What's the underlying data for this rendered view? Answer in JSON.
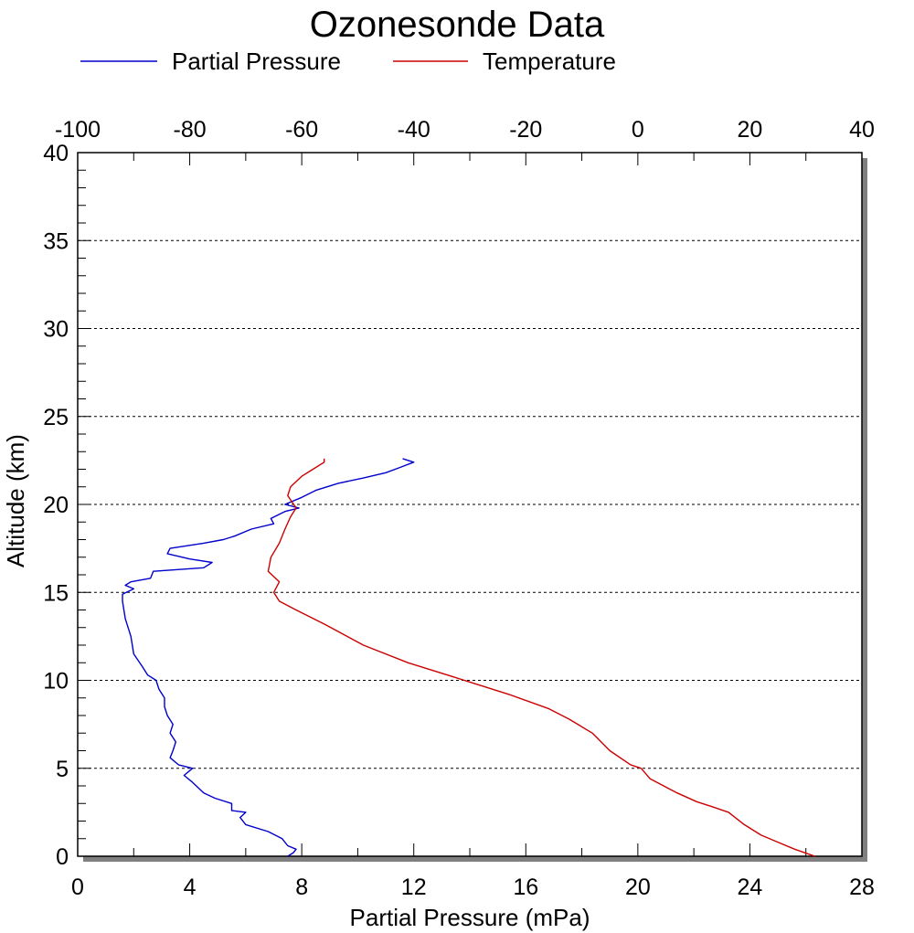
{
  "chart_data": {
    "type": "line",
    "title": "Ozonesonde Data",
    "xlabel": "Partial Pressure (mPa)",
    "ylabel": "Altitude (km)",
    "x_bottom_ticks": [
      "0",
      "4",
      "8",
      "12",
      "16",
      "20",
      "24",
      "28"
    ],
    "x_top_ticks": [
      "-100",
      "-80",
      "-60",
      "-40",
      "-20",
      "0",
      "20",
      "40"
    ],
    "y_ticks": [
      "0",
      "5",
      "10",
      "15",
      "20",
      "25",
      "30",
      "35",
      "40"
    ],
    "xlim_bottom": [
      0,
      28
    ],
    "xlim_top": [
      -100,
      40
    ],
    "ylim": [
      0,
      40
    ],
    "grid": "horizontal dashed",
    "legend_position": "top",
    "series": [
      {
        "name": "Partial Pressure",
        "axis": "bottom",
        "color": "#0000cc",
        "points": [
          [
            7.5,
            0.0
          ],
          [
            7.7,
            0.2
          ],
          [
            7.8,
            0.4
          ],
          [
            7.5,
            0.6
          ],
          [
            7.3,
            1.0
          ],
          [
            6.8,
            1.4
          ],
          [
            6.0,
            1.8
          ],
          [
            5.8,
            2.2
          ],
          [
            6.0,
            2.5
          ],
          [
            5.5,
            2.6
          ],
          [
            5.5,
            3.0
          ],
          [
            4.9,
            3.3
          ],
          [
            4.5,
            3.6
          ],
          [
            4.1,
            4.2
          ],
          [
            3.8,
            4.6
          ],
          [
            4.1,
            5.0
          ],
          [
            3.6,
            5.2
          ],
          [
            3.3,
            5.6
          ],
          [
            3.4,
            6.0
          ],
          [
            3.5,
            6.5
          ],
          [
            3.3,
            7.0
          ],
          [
            3.4,
            7.5
          ],
          [
            3.2,
            8.0
          ],
          [
            3.1,
            8.5
          ],
          [
            3.1,
            9.0
          ],
          [
            2.9,
            9.5
          ],
          [
            2.8,
            10.0
          ],
          [
            2.5,
            10.3
          ],
          [
            2.3,
            10.8
          ],
          [
            2.0,
            11.5
          ],
          [
            1.9,
            12.5
          ],
          [
            1.7,
            13.5
          ],
          [
            1.6,
            14.5
          ],
          [
            1.6,
            14.9
          ],
          [
            2.0,
            15.2
          ],
          [
            1.7,
            15.4
          ],
          [
            1.9,
            15.6
          ],
          [
            2.6,
            15.8
          ],
          [
            2.7,
            16.2
          ],
          [
            4.5,
            16.4
          ],
          [
            4.8,
            16.7
          ],
          [
            4.0,
            16.9
          ],
          [
            3.2,
            17.2
          ],
          [
            3.3,
            17.5
          ],
          [
            4.5,
            17.8
          ],
          [
            5.2,
            18.0
          ],
          [
            5.6,
            18.2
          ],
          [
            6.2,
            18.6
          ],
          [
            7.0,
            18.9
          ],
          [
            6.9,
            19.2
          ],
          [
            7.4,
            19.6
          ],
          [
            7.9,
            19.8
          ],
          [
            7.4,
            20.0
          ],
          [
            8.0,
            20.4
          ],
          [
            8.5,
            20.8
          ],
          [
            9.3,
            21.2
          ],
          [
            10.2,
            21.5
          ],
          [
            11.0,
            21.8
          ],
          [
            11.5,
            22.1
          ],
          [
            12.0,
            22.4
          ],
          [
            11.6,
            22.6
          ]
        ]
      },
      {
        "name": "Temperature",
        "axis": "top",
        "color": "#cc0000",
        "points": [
          [
            31.6,
            0.0
          ],
          [
            28.0,
            0.4
          ],
          [
            25.0,
            0.8
          ],
          [
            22.0,
            1.2
          ],
          [
            19.0,
            1.8
          ],
          [
            16.2,
            2.5
          ],
          [
            13.4,
            2.8
          ],
          [
            10.5,
            3.1
          ],
          [
            7.0,
            3.6
          ],
          [
            2.2,
            4.4
          ],
          [
            0.6,
            5.0
          ],
          [
            -1.3,
            5.2
          ],
          [
            -5.0,
            6.0
          ],
          [
            -8.1,
            7.0
          ],
          [
            -12.3,
            7.8
          ],
          [
            -16.0,
            8.4
          ],
          [
            -23.0,
            9.2
          ],
          [
            -33.0,
            10.2
          ],
          [
            -41.0,
            11.0
          ],
          [
            -49.0,
            12.0
          ],
          [
            -56.0,
            13.2
          ],
          [
            -61.0,
            14.0
          ],
          [
            -64.0,
            14.5
          ],
          [
            -65.0,
            15.0
          ],
          [
            -64.0,
            15.6
          ],
          [
            -66.0,
            16.2
          ],
          [
            -65.5,
            17.0
          ],
          [
            -64.0,
            17.8
          ],
          [
            -63.0,
            18.6
          ],
          [
            -62.0,
            19.3
          ],
          [
            -61.0,
            19.8
          ],
          [
            -62.5,
            20.5
          ],
          [
            -62.0,
            21.0
          ],
          [
            -60.0,
            21.6
          ],
          [
            -58.0,
            22.0
          ],
          [
            -56.0,
            22.4
          ],
          [
            -56.0,
            22.6
          ]
        ]
      }
    ]
  }
}
